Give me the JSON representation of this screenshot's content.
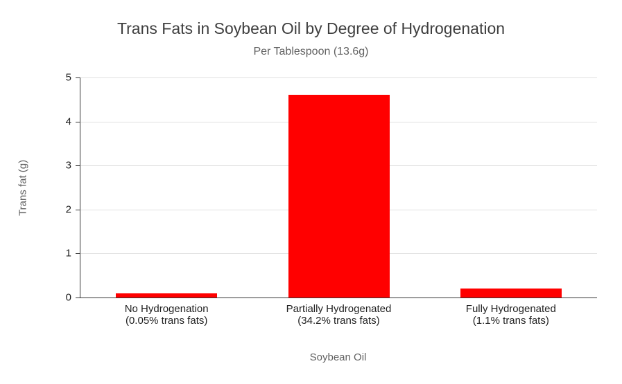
{
  "chart_data": {
    "type": "bar",
    "title": "Trans Fats in Soybean Oil by Degree of Hydrogenation",
    "subtitle": "Per Tablespoon (13.6g)",
    "xlabel": "Soybean Oil",
    "ylabel": "Trans fat (g)",
    "ylim": [
      0,
      5
    ],
    "yticks": [
      0,
      1,
      2,
      3,
      4,
      5
    ],
    "grid": true,
    "legend": "none",
    "bar_color": "#ff0000",
    "axis_color": "#333333",
    "gridline_color": "#e0e0e0",
    "categories": [
      "No Hydrogenation",
      "Partially Hydrogenated",
      "Fully Hydrogenated"
    ],
    "category_sublabels": [
      "(0.05% trans fats)",
      "(34.2% trans fats)",
      "(1.1% trans fats)"
    ],
    "values": [
      0.1,
      4.6,
      0.2
    ]
  }
}
